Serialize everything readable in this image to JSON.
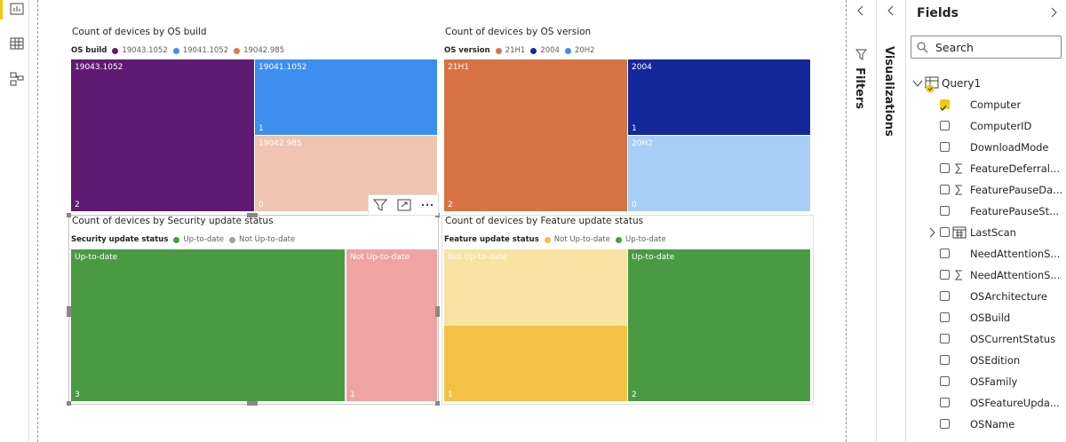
{
  "visuals": [
    {
      "title": "Count of devices by OS build",
      "legend_title": "OS build",
      "legend": [
        {
          "name": "19043.1052",
          "color": "#5f1a73"
        },
        {
          "name": "19041.1052",
          "color": "#3e8ef0"
        },
        {
          "name": "19042.985",
          "color": "#e4764a"
        }
      ],
      "tiles": [
        {
          "label": "19043.1052",
          "value": 2,
          "color": "#5f1a73"
        },
        {
          "label": "19041.1052",
          "value": 1,
          "color": "#3e8ef0"
        },
        {
          "label": "19042.985",
          "value": 0,
          "color": "#efc4b0"
        }
      ]
    },
    {
      "title": "Count of devices by OS version",
      "legend_title": "OS version",
      "legend": [
        {
          "name": "21H1",
          "color": "#d87244"
        },
        {
          "name": "2004",
          "color": "#14289a"
        },
        {
          "name": "20H2",
          "color": "#3e8ef0"
        }
      ],
      "tiles": [
        {
          "label": "21H1",
          "value": 2,
          "color": "#d87244"
        },
        {
          "label": "2004",
          "value": 1,
          "color": "#14289a"
        },
        {
          "label": "20H2",
          "value": 0,
          "color": "#a8cdf6"
        }
      ]
    },
    {
      "title": "Count of devices by Security update status",
      "legend_title": "Security update status",
      "legend": [
        {
          "name": "Up-to-date",
          "color": "#4a9a44"
        },
        {
          "name": "Not Up-to-date",
          "color": "#a0a0a0"
        }
      ],
      "tiles": [
        {
          "label": "Up-to-date",
          "value": 3,
          "color": "#4a9a44"
        },
        {
          "label": "Not Up-to-date",
          "value": 1,
          "color": "#f0a3a3"
        }
      ]
    },
    {
      "title": "Count of devices by Feature update status",
      "legend_title": "Feature update status",
      "legend": [
        {
          "name": "Not Up-to-date",
          "color": "#f4c045"
        },
        {
          "name": "Up-to-date",
          "color": "#4a9a44"
        }
      ],
      "tiles": [
        {
          "label": "Not Up-to-date",
          "value": 1,
          "color": "#f8e2a4",
          "highlight_color": "#f4c045"
        },
        {
          "label": "Up-to-date",
          "value": 2,
          "color": "#4a9a44"
        }
      ]
    }
  ],
  "panes": {
    "filters": "Filters",
    "visualizations": "Visualizations",
    "fields": {
      "title": "Fields",
      "search": "Search",
      "table": "Query1",
      "items": [
        {
          "label": "Computer",
          "checked": true
        },
        {
          "label": "ComputerID"
        },
        {
          "label": "DownloadMode"
        },
        {
          "label": "FeatureDeferral...",
          "aggregate": true
        },
        {
          "label": "FeaturePauseDa...",
          "aggregate": true
        },
        {
          "label": "FeaturePauseSt..."
        },
        {
          "label": "LastScan",
          "date": true
        },
        {
          "label": "NeedAttentionS..."
        },
        {
          "label": "NeedAttentionS...",
          "aggregate": true
        },
        {
          "label": "OSArchitecture"
        },
        {
          "label": "OSBuild"
        },
        {
          "label": "OSCurrentStatus"
        },
        {
          "label": "OSEdition"
        },
        {
          "label": "OSFamily"
        },
        {
          "label": "OSFeatureUpda..."
        },
        {
          "label": "OSName"
        }
      ]
    }
  }
}
